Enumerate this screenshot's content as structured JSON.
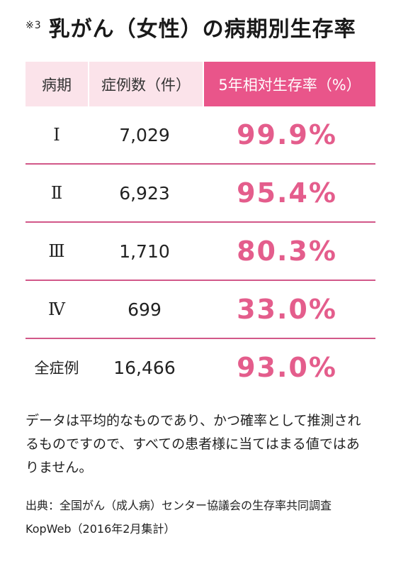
{
  "header": {
    "note_mark": "※3",
    "title": "乳がん（女性）の病期別生存率"
  },
  "table": {
    "columns": [
      "病期",
      "症例数（件）",
      "5年相対生存率（%）"
    ],
    "rows": [
      {
        "stage": "Ⅰ",
        "cases": "7,029",
        "rate": "99.9%"
      },
      {
        "stage": "Ⅱ",
        "cases": "6,923",
        "rate": "95.4%"
      },
      {
        "stage": "Ⅲ",
        "cases": "1,710",
        "rate": "80.3%"
      },
      {
        "stage": "Ⅳ",
        "cases": "699",
        "rate": "33.0%"
      },
      {
        "stage": "全症例",
        "cases": "16,466",
        "rate": "93.0%"
      }
    ]
  },
  "footer": {
    "note": "データは平均的なものであり、かつ確率として推測されるものですので、すべての患者様に当てはまる値ではありません。",
    "source_line1": "出典：全国がん（成人病）センター協議会の生存率共同調査",
    "source_line2": "KopWeb（2016年2月集計）"
  },
  "colors": {
    "accent": "#e9558a",
    "accent_light": "#fbe3ea",
    "rate_text": "#e45d8c",
    "row_divider": "#d25889"
  }
}
